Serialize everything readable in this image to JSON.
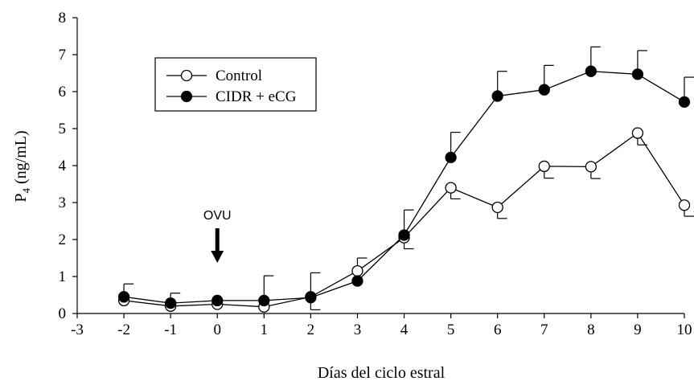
{
  "chart_data": {
    "type": "line",
    "title": "",
    "xlabel": "Días del ciclo estral",
    "ylabel_main": "P",
    "ylabel_sub": "4",
    "ylabel_rest": " (ng/mL)",
    "xlim": [
      -3,
      10
    ],
    "ylim": [
      0,
      8
    ],
    "xticks": [
      "-3",
      "-2",
      "-1",
      "0",
      "1",
      "2",
      "3",
      "4",
      "5",
      "6",
      "7",
      "8",
      "9",
      "10"
    ],
    "yticks": [
      "0",
      "1",
      "2",
      "3",
      "4",
      "5",
      "6",
      "7",
      "8"
    ],
    "grid": false,
    "legend_position": "top-left",
    "series": [
      {
        "name": "Control",
        "marker": "open-circle",
        "color": "#000000",
        "x": [
          -2,
          -1,
          0,
          1,
          2,
          3,
          4,
          5,
          6,
          7,
          8,
          9,
          10
        ],
        "y": [
          0.35,
          0.2,
          0.25,
          0.18,
          0.45,
          1.15,
          2.05,
          3.4,
          2.87,
          3.98,
          3.97,
          4.88,
          2.93
        ],
        "error_up": [
          0,
          0,
          0,
          0,
          0,
          0.35,
          0,
          0,
          0,
          0,
          0,
          0,
          0
        ],
        "error_down": [
          0,
          0,
          0,
          0,
          0.35,
          0,
          0.3,
          0.3,
          0.3,
          0.32,
          0.32,
          0.32,
          0.3
        ]
      },
      {
        "name": "CIDR + eCG",
        "marker": "filled-circle",
        "color": "#000000",
        "x": [
          -2,
          -1,
          0,
          1,
          2,
          3,
          4,
          5,
          6,
          7,
          8,
          9,
          10
        ],
        "y": [
          0.45,
          0.28,
          0.35,
          0.35,
          0.43,
          0.88,
          2.12,
          4.22,
          5.88,
          6.05,
          6.55,
          6.47,
          5.72
        ],
        "error_up": [
          0.35,
          0.27,
          0,
          0.67,
          0.67,
          0,
          0.68,
          0.68,
          0.67,
          0.66,
          0.66,
          0.64,
          0.67
        ],
        "error_down": [
          0,
          0,
          0,
          0,
          0,
          0,
          0,
          0,
          0,
          0,
          0,
          0,
          0
        ]
      }
    ],
    "annotations": [
      {
        "text": "OVU",
        "x": 0,
        "arrow": "down"
      }
    ]
  }
}
